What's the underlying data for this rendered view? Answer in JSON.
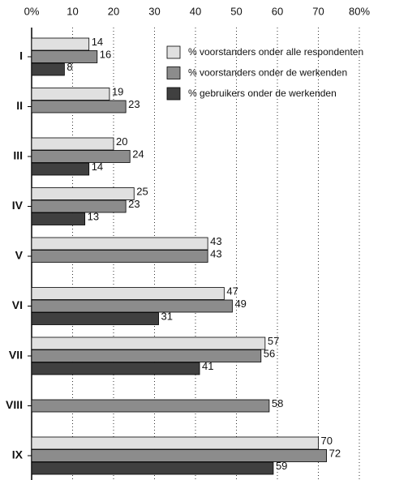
{
  "chart_data": {
    "type": "bar",
    "orientation": "horizontal",
    "categories": [
      "I",
      "II",
      "III",
      "IV",
      "V",
      "VI",
      "VII",
      "VIII",
      "IX"
    ],
    "series": [
      {
        "name": "% voorstanders onder alle respondenten",
        "color": "#e0e0e0",
        "values": [
          14,
          19,
          20,
          25,
          43,
          47,
          57,
          null,
          70
        ]
      },
      {
        "name": "% voorstanders onder de werkenden",
        "color": "#8c8c8c",
        "values": [
          16,
          23,
          24,
          23,
          43,
          49,
          56,
          58,
          72
        ]
      },
      {
        "name": "% gebruikers onder de werkenden",
        "color": "#404040",
        "values": [
          8,
          null,
          14,
          13,
          null,
          31,
          41,
          null,
          59
        ]
      }
    ],
    "xlim": [
      0,
      80
    ],
    "xticks": [
      {
        "value": 0,
        "label": "0%"
      },
      10,
      20,
      30,
      40,
      50,
      60,
      70,
      {
        "value": 80,
        "label": "80%"
      }
    ],
    "grid": true
  }
}
